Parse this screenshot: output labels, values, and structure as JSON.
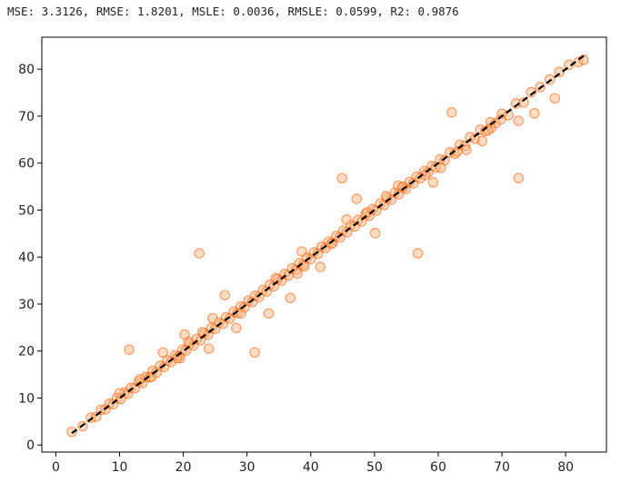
{
  "metrics_text": "MSE: 3.3126, RMSE: 1.8201, MSLE: 0.0036, RMSLE: 0.0599, R2: 0.9876",
  "colors": {
    "point_fill": "#ffb27a",
    "point_stroke": "#ff5a00",
    "identity_line": "#000000",
    "axes": "#000000"
  },
  "chart_data": {
    "type": "scatter",
    "title": "",
    "xlabel": "",
    "ylabel": "",
    "xlim": [
      -2.2,
      86.4
    ],
    "ylim": [
      -1.5,
      86.8
    ],
    "grid": false,
    "xticks": [
      0,
      10,
      20,
      30,
      40,
      50,
      60,
      70,
      80
    ],
    "yticks": [
      0,
      10,
      20,
      30,
      40,
      50,
      60,
      70,
      80
    ],
    "identity_line": {
      "from": [
        2.5,
        2.5
      ],
      "to": [
        83,
        83
      ],
      "style": "dashed"
    },
    "series": [
      {
        "marker": "circle-open",
        "x": [
          2.5,
          4.2,
          5.5,
          6.3,
          7.1,
          7.8,
          8.4,
          9.0,
          9.6,
          10.2,
          10.8,
          11.3,
          11.8,
          12.4,
          13.0,
          13.6,
          14.1,
          14.7,
          15.2,
          15.8,
          16.4,
          17.0,
          17.5,
          18.1,
          18.7,
          19.3,
          19.9,
          20.4,
          21.0,
          21.6,
          22.1,
          22.7,
          23.3,
          23.9,
          24.4,
          25.0,
          25.6,
          26.2,
          26.7,
          27.3,
          27.9,
          28.5,
          29.0,
          29.6,
          30.2,
          30.8,
          31.3,
          31.9,
          32.5,
          33.1,
          33.6,
          34.2,
          34.8,
          35.4,
          35.9,
          36.5,
          37.1,
          37.7,
          38.2,
          38.8,
          39.4,
          40.0,
          40.5,
          41.1,
          41.7,
          42.3,
          42.8,
          43.4,
          44.0,
          44.6,
          45.1,
          45.7,
          46.3,
          46.9,
          47.4,
          48.0,
          48.6,
          49.2,
          49.7,
          50.3,
          50.9,
          51.5,
          52.0,
          52.6,
          53.2,
          53.8,
          54.3,
          54.9,
          55.5,
          56.1,
          56.6,
          57.2,
          57.8,
          58.4,
          59.0,
          59.6,
          60.3,
          61.0,
          61.8,
          62.6,
          63.4,
          64.2,
          65.0,
          65.8,
          66.6,
          67.4,
          68.2,
          69.0,
          70.0,
          71.0,
          72.2,
          73.4,
          74.6,
          76.0,
          77.5,
          79.0,
          80.5,
          82.0,
          82.8,
          11.5,
          13.2,
          16.8,
          19.5,
          20.8,
          22.5,
          24.0,
          26.5,
          28.3,
          33.4,
          36.8,
          38.6,
          41.5,
          44.9,
          47.2,
          50.1,
          53.7,
          56.8,
          59.2,
          62.1,
          64.4,
          66.9,
          69.8,
          72.6,
          75.1,
          78.3,
          20.2,
          24.6,
          31.2,
          37.9,
          45.6,
          51.8,
          60.4,
          68.3,
          72.6,
          10.0,
          15.0,
          19.0,
          23.0,
          29.0,
          34.5,
          39.0,
          43.2,
          48.8,
          54.5,
          58.0,
          63.0,
          67.8
        ],
        "y": [
          2.8,
          4.0,
          5.8,
          6.0,
          7.5,
          7.6,
          8.8,
          8.7,
          10.0,
          9.8,
          11.2,
          10.9,
          12.2,
          12.1,
          13.5,
          13.2,
          14.5,
          14.4,
          15.8,
          15.4,
          16.9,
          16.6,
          18.0,
          17.7,
          19.1,
          18.9,
          20.3,
          20.1,
          21.5,
          21.2,
          22.6,
          22.3,
          23.8,
          23.5,
          24.9,
          24.7,
          26.1,
          25.8,
          27.2,
          26.9,
          28.4,
          28.1,
          29.5,
          29.3,
          30.7,
          30.4,
          31.8,
          31.5,
          33.0,
          32.7,
          34.1,
          33.8,
          35.3,
          35.0,
          36.4,
          36.1,
          37.6,
          37.3,
          38.7,
          38.4,
          39.9,
          39.6,
          41.0,
          40.7,
          42.2,
          41.9,
          43.3,
          43.0,
          44.5,
          44.2,
          45.6,
          45.3,
          46.8,
          46.5,
          47.9,
          47.6,
          49.1,
          48.8,
          50.2,
          49.9,
          51.4,
          51.1,
          52.5,
          52.2,
          53.7,
          53.4,
          54.8,
          54.5,
          56.0,
          55.7,
          57.1,
          56.8,
          58.3,
          58.0,
          59.4,
          59.1,
          60.8,
          60.6,
          62.3,
          62.0,
          63.9,
          63.7,
          65.5,
          65.2,
          67.1,
          66.8,
          68.7,
          68.5,
          70.5,
          70.2,
          72.7,
          72.9,
          75.1,
          76.2,
          77.8,
          79.4,
          80.9,
          81.5,
          82.0,
          20.3,
          14.0,
          19.7,
          18.5,
          22.0,
          40.8,
          20.5,
          31.9,
          24.9,
          28.0,
          31.3,
          41.2,
          37.9,
          56.8,
          52.4,
          45.1,
          55.2,
          40.8,
          55.9,
          70.8,
          62.8,
          64.7,
          69.3,
          56.8,
          70.6,
          73.8,
          23.5,
          27.0,
          19.7,
          36.5,
          48.0,
          53.0,
          59.0,
          67.5,
          69.0,
          11.0,
          14.5,
          18.5,
          24.0,
          28.0,
          35.5,
          38.0,
          42.8,
          49.5,
          55.0,
          57.5,
          62.5,
          67.0
        ]
      }
    ]
  }
}
